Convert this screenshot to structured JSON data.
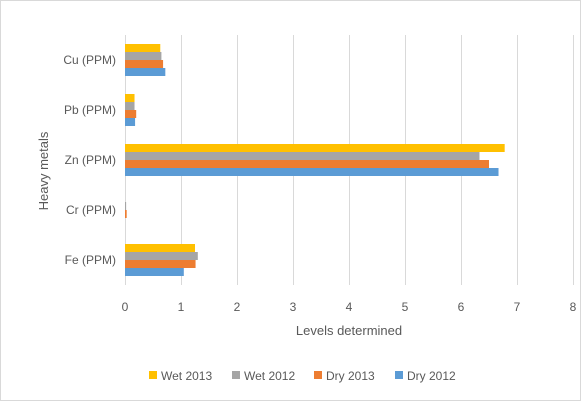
{
  "chart_data": {
    "type": "bar",
    "orientation": "horizontal",
    "categories": [
      "Cu (PPM)",
      "Pb (PPM)",
      "Zn (PPM)",
      "Cr (PPM)",
      "Fe (PPM)"
    ],
    "series": [
      {
        "name": "Wet 2013",
        "color": "#ffc000",
        "values": [
          0.63,
          0.17,
          6.78,
          0.0,
          1.25
        ]
      },
      {
        "name": "Wet 2012",
        "color": "#a5a5a5",
        "values": [
          0.65,
          0.17,
          6.33,
          0.02,
          1.3
        ]
      },
      {
        "name": "Dry 2013",
        "color": "#ed7d31",
        "values": [
          0.68,
          0.2,
          6.5,
          0.03,
          1.26
        ]
      },
      {
        "name": "Dry 2012",
        "color": "#5b9bd5",
        "values": [
          0.72,
          0.18,
          6.67,
          0.0,
          1.05
        ]
      }
    ],
    "xlabel": "Levels determined",
    "ylabel": "Heavy metals",
    "xlim": [
      0,
      8
    ],
    "xticks": [
      "0",
      "1",
      "2",
      "3",
      "4",
      "5",
      "6",
      "7",
      "8"
    ],
    "legend_position": "bottom",
    "legend_order": [
      "Wet 2013",
      "Wet 2012",
      "Dry 2013",
      "Dry 2012"
    ],
    "grid": "vertical"
  }
}
